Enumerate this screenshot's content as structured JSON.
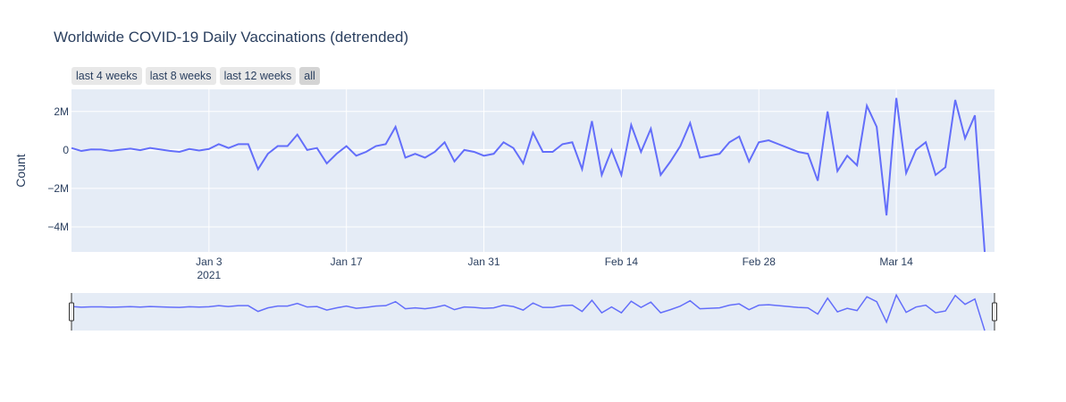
{
  "chart_data": {
    "type": "line",
    "title": "Worldwide COVID-19 Daily Vaccinations (detrended)",
    "xlabel": "",
    "ylabel": "Count",
    "x_start": "2020-12-20",
    "x_end": "2021-03-24",
    "xlim": [
      "2020-12-20",
      "2021-03-24"
    ],
    "ylim": [
      -5300000,
      3150000
    ],
    "x_ticks": [
      {
        "date": "2021-01-03",
        "label": "Jan 3",
        "sublabel": "2021"
      },
      {
        "date": "2021-01-17",
        "label": "Jan 17",
        "sublabel": ""
      },
      {
        "date": "2021-01-31",
        "label": "Jan 31",
        "sublabel": ""
      },
      {
        "date": "2021-02-14",
        "label": "Feb 14",
        "sublabel": ""
      },
      {
        "date": "2021-02-28",
        "label": "Feb 28",
        "sublabel": ""
      },
      {
        "date": "2021-03-14",
        "label": "Mar 14",
        "sublabel": ""
      }
    ],
    "y_ticks": [
      {
        "value": 2000000,
        "label": "2M"
      },
      {
        "value": 0,
        "label": "0"
      },
      {
        "value": -2000000,
        "label": "−2M"
      },
      {
        "value": -4000000,
        "label": "−4M"
      }
    ],
    "grid": true,
    "color": "#636efa",
    "series": [
      {
        "name": "",
        "values": [
          100000,
          -50000,
          30000,
          20000,
          -50000,
          10000,
          70000,
          -10000,
          100000,
          30000,
          -50000,
          -100000,
          50000,
          -30000,
          50000,
          300000,
          100000,
          300000,
          300000,
          -1000000,
          -200000,
          200000,
          200000,
          800000,
          0,
          100000,
          -700000,
          -200000,
          200000,
          -300000,
          -100000,
          200000,
          300000,
          1200000,
          -400000,
          -200000,
          -400000,
          -100000,
          400000,
          -600000,
          0,
          -100000,
          -300000,
          -200000,
          400000,
          100000,
          -700000,
          900000,
          -100000,
          -100000,
          300000,
          400000,
          -1000000,
          1500000,
          -1300000,
          0,
          -1300000,
          1300000,
          -100000,
          1100000,
          -1300000,
          -600000,
          200000,
          1400000,
          -400000,
          -300000,
          -200000,
          400000,
          700000,
          -600000,
          400000,
          500000,
          300000,
          100000,
          -100000,
          -200000,
          -1600000,
          2000000,
          -1100000,
          -300000,
          -800000,
          2300000,
          1200000,
          -3400000,
          2700000,
          -1200000,
          0,
          400000,
          -1300000,
          -900000,
          2600000,
          600000,
          1800000,
          -5300000
        ]
      }
    ]
  },
  "range_selector": {
    "buttons": [
      {
        "label": "last 4 weeks",
        "active": false
      },
      {
        "label": "last 8 weeks",
        "active": false
      },
      {
        "label": "last 12 weeks",
        "active": false
      },
      {
        "label": "all",
        "active": true
      }
    ]
  }
}
